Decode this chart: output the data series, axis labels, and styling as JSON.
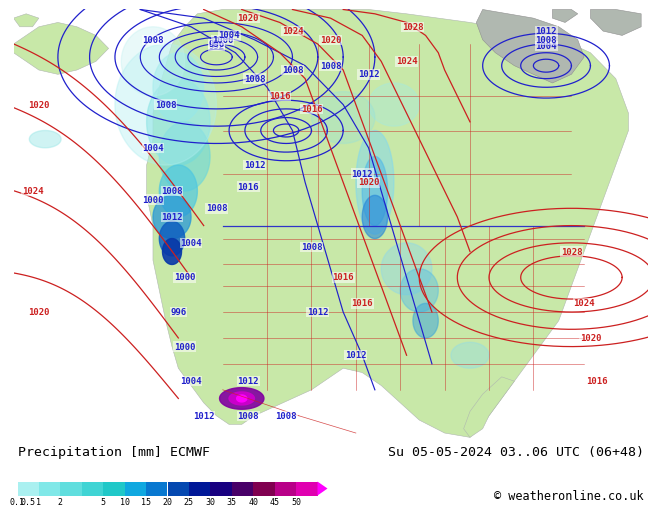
{
  "title_left": "Precipitation [mm] ECMWF",
  "title_right": "Su 05-05-2024 03..06 UTC (06+48)",
  "copyright": "© weatheronline.co.uk",
  "colorbar_labels": [
    "0.1",
    "0.5",
    "1",
    "2",
    "5",
    "10",
    "15",
    "20",
    "25",
    "30",
    "35",
    "40",
    "45",
    "50"
  ],
  "colorbar_colors": [
    "#aaf0f0",
    "#80e8e8",
    "#60dede",
    "#40d4d4",
    "#20c8c8",
    "#10a8e0",
    "#0878d0",
    "#0448b0",
    "#001898",
    "#180080",
    "#480068",
    "#800050",
    "#b80088",
    "#e000b0",
    "#ff00ff"
  ],
  "ocean_color": "#d0e8f8",
  "land_color": "#c8e8a8",
  "land_color2": "#b8d898",
  "gray_land": "#b0b8b0",
  "footer_bg": "#ffffff",
  "blue_isobar": "#2020cc",
  "red_isobar": "#cc2020",
  "state_color": "#cc2020",
  "border_color": "#cc2020",
  "coast_color": "#808080"
}
